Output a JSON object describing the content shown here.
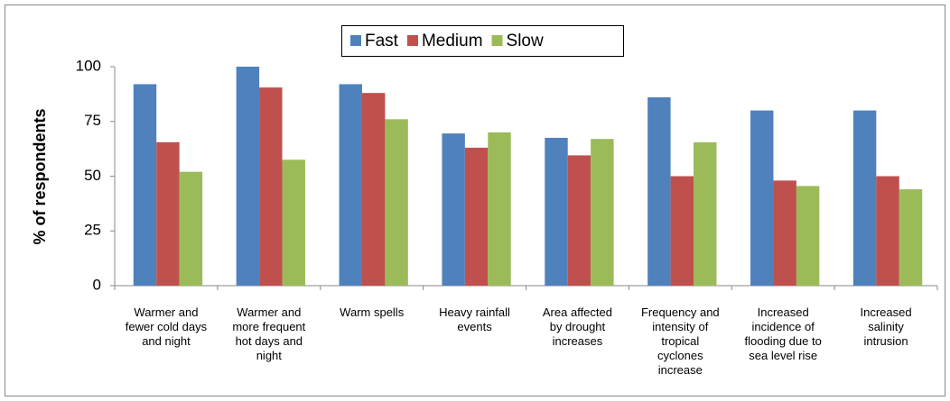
{
  "chart_data": {
    "type": "bar",
    "y_label": "% of respondents",
    "categories": [
      "Warmer and\nfewer cold days\nand night",
      "Warmer and\nmore frequent\nhot days and\nnight",
      "Warm spells",
      "Heavy rainfall\nevents",
      "Area affected\nby drought\nincreases",
      "Frequency and\nintensity of\ntropical\ncyclones\nincrease",
      "Increased\nincidence of\nflooding due to\nsea level rise",
      "Increased\nsalinity\nintrusion"
    ],
    "series": [
      {
        "name": "Fast",
        "color": "#4f81bd",
        "values": [
          92,
          100,
          92,
          69.5,
          67.5,
          86,
          80,
          80
        ]
      },
      {
        "name": "Medium",
        "color": "#c0504d",
        "values": [
          65.5,
          90.5,
          88,
          63,
          59.5,
          50,
          48,
          50
        ]
      },
      {
        "name": "Slow",
        "color": "#9bbb59",
        "values": [
          52,
          57.5,
          76,
          70,
          67,
          65.5,
          45.5,
          44
        ]
      }
    ],
    "ylim": [
      0,
      100
    ],
    "yticks": [
      0,
      25,
      50,
      75,
      100
    ],
    "grid": false,
    "legend": "top"
  }
}
